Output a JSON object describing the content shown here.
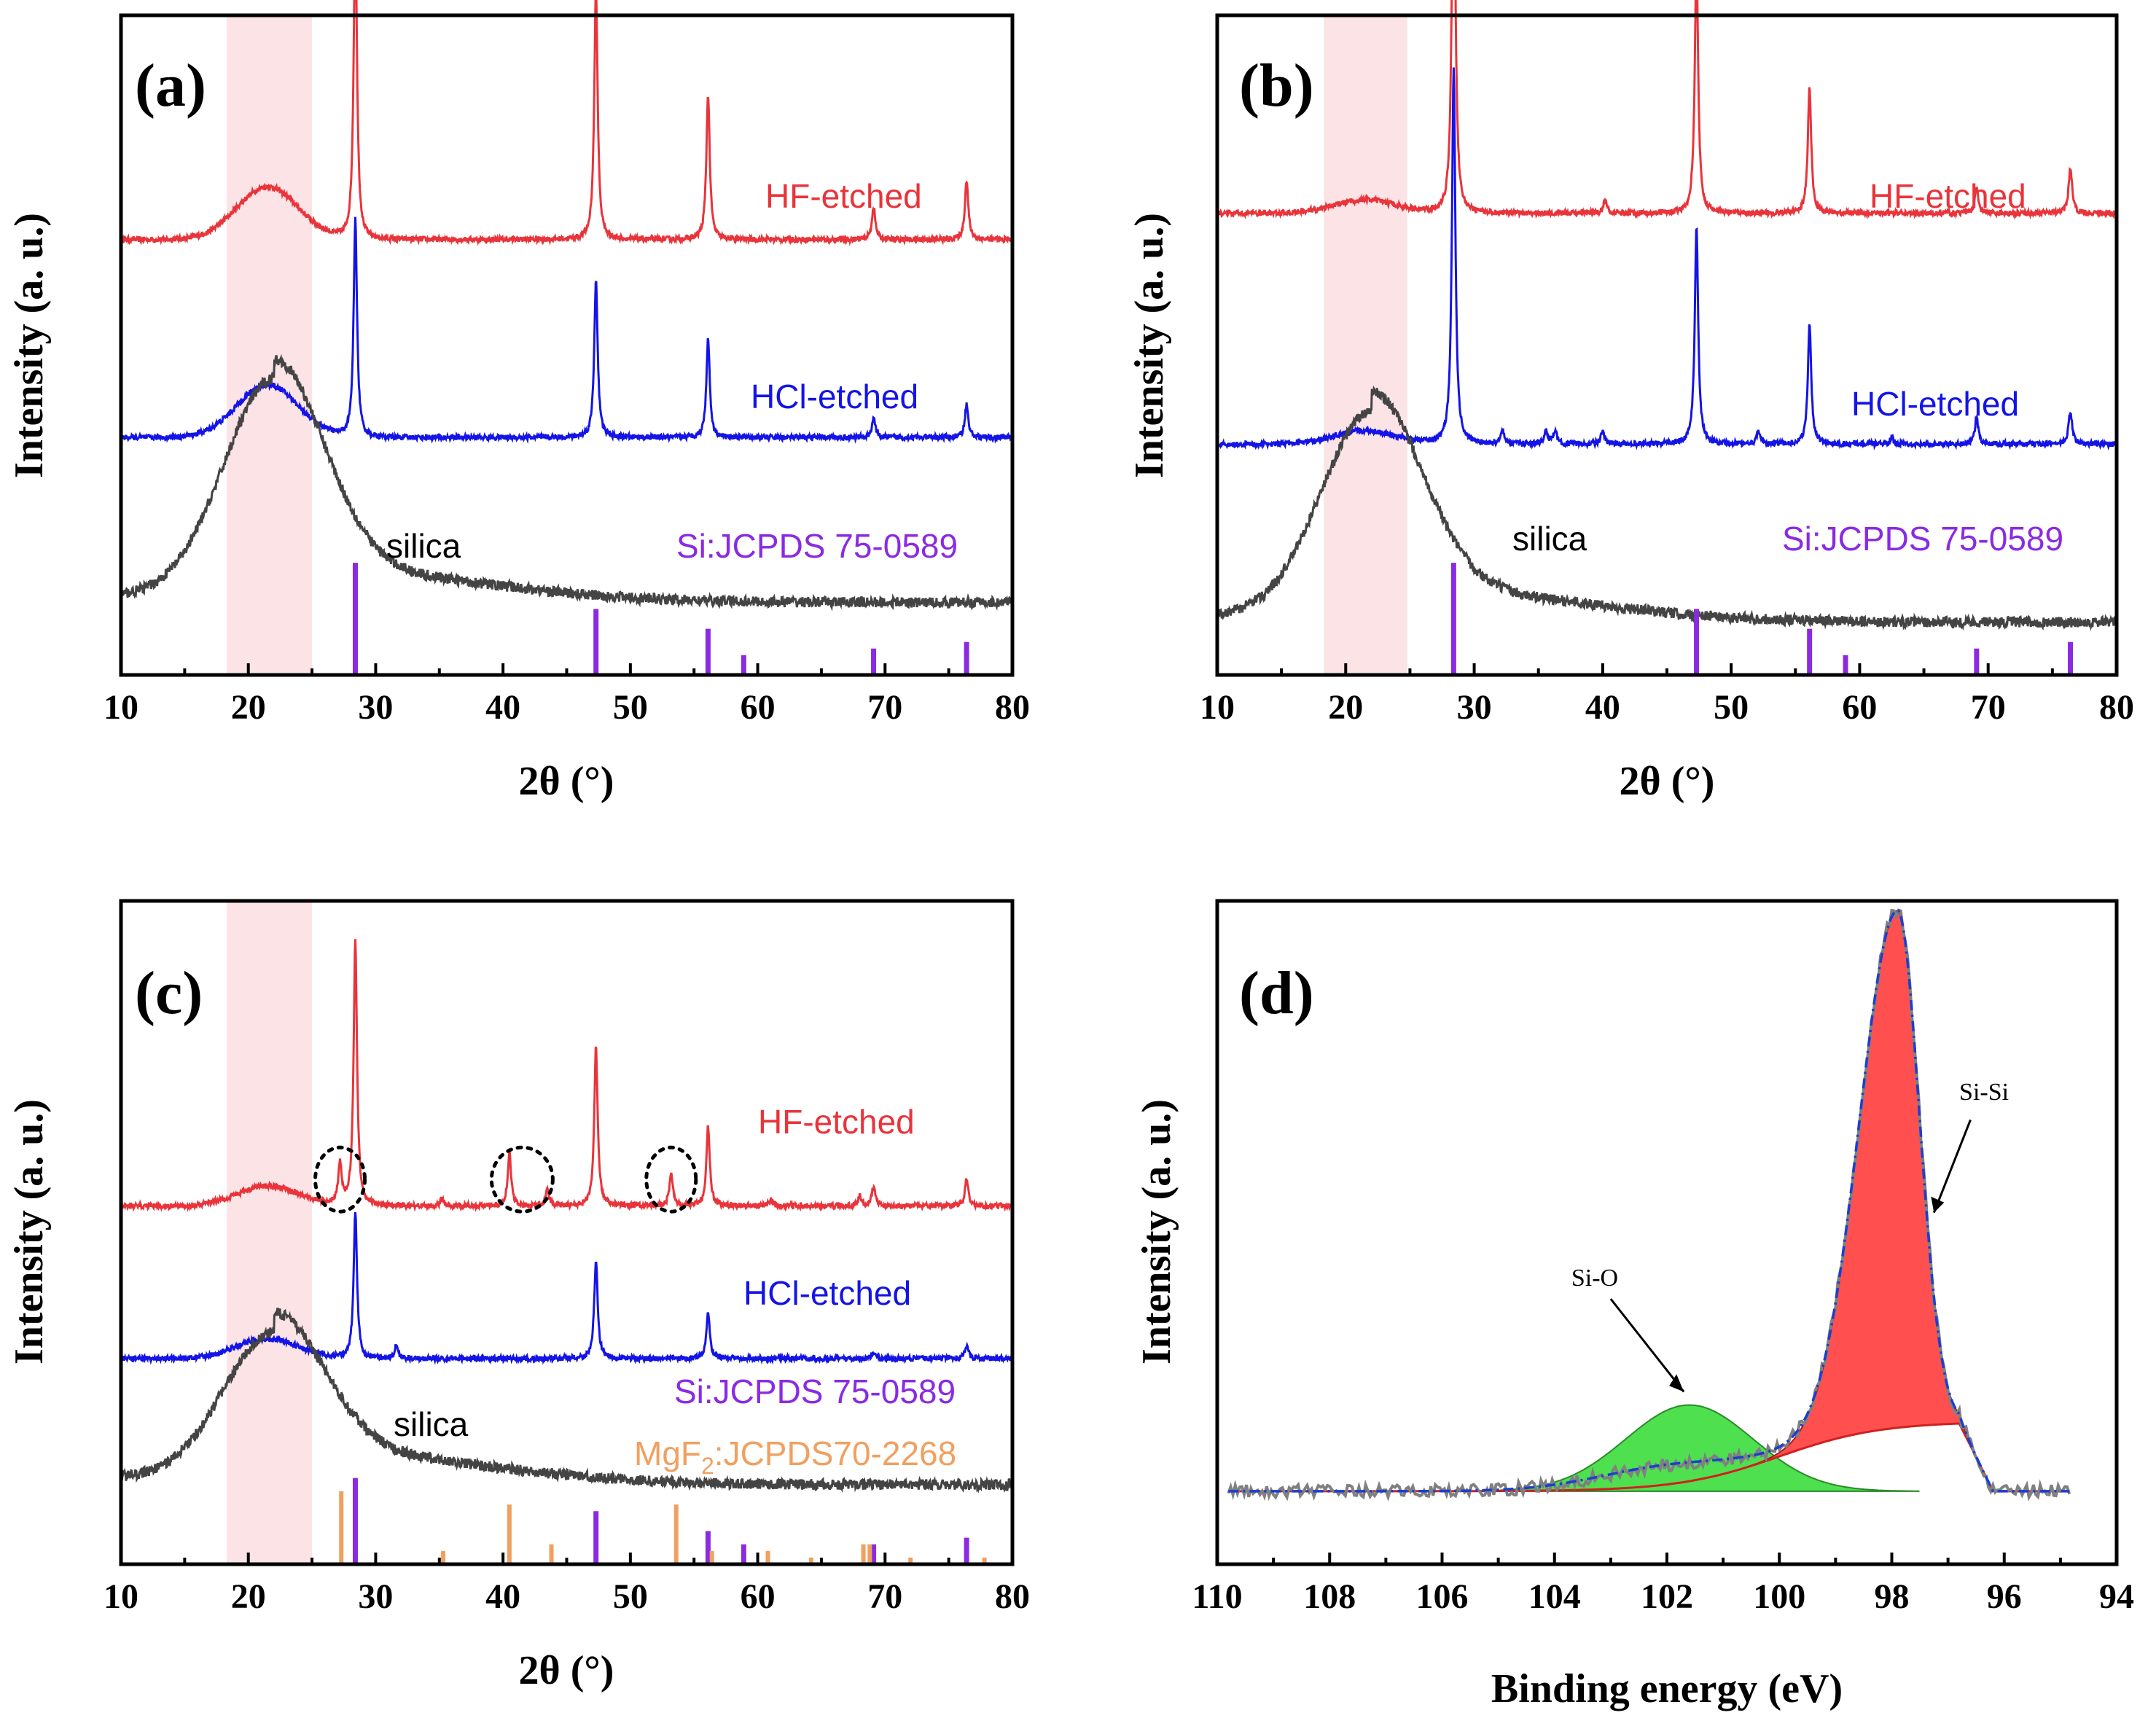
{
  "colors": {
    "hf": "#e8343a",
    "hcl": "#1414e6",
    "silica": "#444444",
    "si_ref": "#8a2be2",
    "mgf2_ref": "#f0a060",
    "highlight": "#fadadd",
    "si_si_fill": "#ff4f4f",
    "si_o_fill": "#4fe04f",
    "envelope": "#1a3fd0",
    "baseline": "#d02020",
    "raw": "#808080"
  },
  "chart_data": [
    {
      "id": "a",
      "type": "line",
      "panel_label": "(a)",
      "xlabel": "2θ (°)",
      "ylabel": "Intensity (a. u.)",
      "xlim": [
        10,
        80
      ],
      "xticks": [
        10,
        20,
        30,
        40,
        50,
        60,
        70,
        80
      ],
      "highlight_range": [
        18.3,
        25
      ],
      "series": [
        {
          "name": "HF-etched",
          "color_key": "hf",
          "offset": 0.66,
          "broad": 0.08,
          "peaks": [
            [
              28.4,
              0.47
            ],
            [
              47.3,
              0.38
            ],
            [
              56.1,
              0.22
            ],
            [
              69.1,
              0.05
            ],
            [
              76.4,
              0.09
            ]
          ]
        },
        {
          "name": "HCl-etched",
          "color_key": "hcl",
          "offset": 0.36,
          "broad": 0.08,
          "peaks": [
            [
              28.4,
              0.33
            ],
            [
              47.3,
              0.24
            ],
            [
              56.1,
              0.15
            ],
            [
              69.1,
              0.03
            ],
            [
              76.4,
              0.05
            ]
          ]
        },
        {
          "name": "silica",
          "color_key": "silica",
          "offset": 0.11,
          "broad": 0.32,
          "peaks": []
        }
      ],
      "reference": {
        "name": "Si:JCPDS 75-0589",
        "sticks": [
          [
            28.4,
            0.17
          ],
          [
            47.3,
            0.1
          ],
          [
            56.1,
            0.07
          ],
          [
            58.9,
            0.03
          ],
          [
            69.1,
            0.04
          ],
          [
            76.4,
            0.05
          ]
        ]
      }
    },
    {
      "id": "b",
      "type": "line",
      "panel_label": "(b)",
      "xlabel": "2θ (°)",
      "ylabel": "Intensity (a. u.)",
      "xlim": [
        10,
        80
      ],
      "xticks": [
        10,
        20,
        30,
        40,
        50,
        60,
        70,
        80
      ],
      "highlight_range": [
        18.3,
        24.8
      ],
      "series": [
        {
          "name": "HF-etched",
          "color_key": "hf",
          "offset": 0.7,
          "broad": 0.02,
          "peaks": [
            [
              28.4,
              0.62
            ],
            [
              40.2,
              0.02
            ],
            [
              47.3,
              0.38
            ],
            [
              56.1,
              0.19
            ],
            [
              69.1,
              0.04
            ],
            [
              76.4,
              0.07
            ]
          ]
        },
        {
          "name": "HCl-etched",
          "color_key": "hcl",
          "offset": 0.35,
          "broad": 0.02,
          "peaks": [
            [
              28.4,
              0.57
            ],
            [
              32.2,
              0.02
            ],
            [
              35.6,
              0.02
            ],
            [
              36.3,
              0.02
            ],
            [
              40.0,
              0.02
            ],
            [
              47.3,
              0.33
            ],
            [
              52.1,
              0.02
            ],
            [
              56.1,
              0.18
            ],
            [
              62.5,
              0.01
            ],
            [
              69.1,
              0.04
            ],
            [
              76.4,
              0.05
            ]
          ]
        },
        {
          "name": "silica",
          "color_key": "silica",
          "offset": 0.08,
          "broad": 0.3,
          "peaks": []
        }
      ],
      "reference": {
        "name": "Si:JCPDS 75-0589",
        "sticks": [
          [
            28.4,
            0.17
          ],
          [
            47.3,
            0.1
          ],
          [
            56.1,
            0.07
          ],
          [
            58.9,
            0.03
          ],
          [
            69.1,
            0.04
          ],
          [
            76.4,
            0.05
          ]
        ]
      }
    },
    {
      "id": "c",
      "type": "line",
      "panel_label": "(c)",
      "xlabel": "2θ (°)",
      "ylabel": "Intensity (a. u.)",
      "xlim": [
        10,
        80
      ],
      "xticks": [
        10,
        20,
        30,
        40,
        50,
        60,
        70,
        80
      ],
      "highlight_range": [
        18.3,
        25
      ],
      "series": [
        {
          "name": "HF-etched",
          "color_key": "hf",
          "offset": 0.54,
          "broad": 0.03,
          "peaks": [
            [
              27.2,
              0.06
            ],
            [
              28.4,
              0.4
            ],
            [
              35.2,
              0.01
            ],
            [
              40.5,
              0.08
            ],
            [
              43.5,
              0.025
            ],
            [
              47.3,
              0.24
            ],
            [
              53.2,
              0.05
            ],
            [
              56.1,
              0.12
            ],
            [
              61.0,
              0.01
            ],
            [
              68.0,
              0.015
            ],
            [
              69.1,
              0.03
            ],
            [
              76.4,
              0.04
            ]
          ]
        },
        {
          "name": "HCl-etched",
          "color_key": "hcl",
          "offset": 0.31,
          "broad": 0.03,
          "peaks": [
            [
              28.4,
              0.22
            ],
            [
              31.6,
              0.02
            ],
            [
              47.3,
              0.15
            ],
            [
              56.1,
              0.07
            ],
            [
              69.1,
              0.01
            ],
            [
              76.4,
              0.02
            ]
          ]
        },
        {
          "name": "silica",
          "color_key": "silica",
          "offset": 0.12,
          "broad": 0.21,
          "peaks": []
        }
      ],
      "reference": {
        "name": "Si:JCPDS 75-0589",
        "sticks": [
          [
            28.4,
            0.13
          ],
          [
            47.3,
            0.08
          ],
          [
            56.1,
            0.05
          ],
          [
            58.9,
            0.03
          ],
          [
            69.1,
            0.03
          ],
          [
            76.4,
            0.04
          ]
        ]
      },
      "reference2": {
        "name_main": "MgF",
        "name_sub": "2",
        "name_rest": ":JCPDS70-2268",
        "sticks": [
          [
            27.3,
            0.11
          ],
          [
            35.3,
            0.02
          ],
          [
            40.5,
            0.09
          ],
          [
            43.8,
            0.03
          ],
          [
            53.6,
            0.09
          ],
          [
            56.4,
            0.02
          ],
          [
            60.8,
            0.02
          ],
          [
            64.2,
            0.01
          ],
          [
            68.3,
            0.03
          ],
          [
            68.8,
            0.03
          ],
          [
            72.0,
            0.01
          ],
          [
            77.8,
            0.01
          ]
        ]
      },
      "annotations": [
        {
          "type": "dotted-ellipse",
          "x": 27.2
        },
        {
          "type": "dotted-ellipse",
          "x": 41.5
        },
        {
          "type": "dotted-ellipse",
          "x": 53.2
        }
      ]
    },
    {
      "id": "d",
      "type": "area",
      "panel_label": "(d)",
      "xlabel": "Binding energy (eV)",
      "ylabel": "Intensity (a. u.)",
      "xlim": [
        110,
        94
      ],
      "xticks": [
        110,
        108,
        106,
        104,
        102,
        100,
        98,
        96,
        94
      ],
      "components": [
        {
          "name": "Si-Si",
          "center": 97.9,
          "amplitude": 0.78,
          "fill_key": "si_si_fill"
        },
        {
          "name": "Si-O",
          "center": 101.6,
          "amplitude": 0.13,
          "fill_key": "si_o_fill"
        }
      ],
      "baseline": [
        0.2,
        0.11
      ]
    }
  ]
}
